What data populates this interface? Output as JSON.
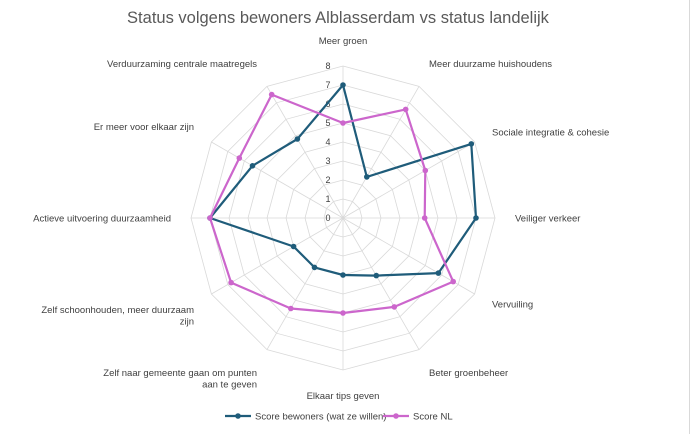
{
  "chart_data": {
    "type": "radar",
    "title": "Status volgens bewoners Alblasserdam vs status landelijk",
    "categories": [
      "Meer groen",
      "Meer duurzame huishoudens",
      "Sociale integratie & cohesie",
      "Veiliger verkeer",
      "Vervuiling",
      "Beter groenbeheer",
      "Elkaar tips geven",
      "Zelf naar gemeente gaan om punten aan te geven",
      "Zelf schoonhouden, meer duurzaam zijn",
      "Actieve uitvoering duurzaamheid",
      "Er meer voor elkaar zijn",
      "Verduurzaming centrale maatregels"
    ],
    "category_lines": [
      [
        "Meer groen"
      ],
      [
        "Meer duurzame huishoudens"
      ],
      [
        "Sociale integratie & cohesie"
      ],
      [
        "Veiliger verkeer"
      ],
      [
        "Vervuiling"
      ],
      [
        "Beter groenbeheer"
      ],
      [
        "Elkaar tips geven"
      ],
      [
        "Zelf naar gemeente gaan om punten",
        "aan te geven"
      ],
      [
        "Zelf schoonhouden, meer duurzaam",
        "zijn"
      ],
      [
        "Actieve uitvoering duurzaamheid"
      ],
      [
        "Er meer voor elkaar zijn"
      ],
      [
        "Verduurzaming centrale maatregels"
      ]
    ],
    "r_ticks": [
      "0",
      "1",
      "2",
      "3",
      "4",
      "5",
      "6",
      "7",
      "8"
    ],
    "r_range": [
      0,
      8
    ],
    "series": [
      {
        "name": "Score bewoners (wat ze willen)",
        "color": "#1f5c7a",
        "values": [
          7.0,
          2.5,
          7.8,
          7.0,
          5.8,
          3.5,
          3.0,
          3.0,
          3.0,
          7.0,
          5.5,
          4.8
        ]
      },
      {
        "name": "Score NL",
        "color": "#cc66cc",
        "values": [
          5.0,
          6.6,
          5.0,
          4.3,
          6.7,
          5.4,
          5.0,
          5.5,
          6.8,
          7.0,
          6.3,
          7.5
        ]
      }
    ],
    "legend_position": "bottom",
    "grid": true
  }
}
